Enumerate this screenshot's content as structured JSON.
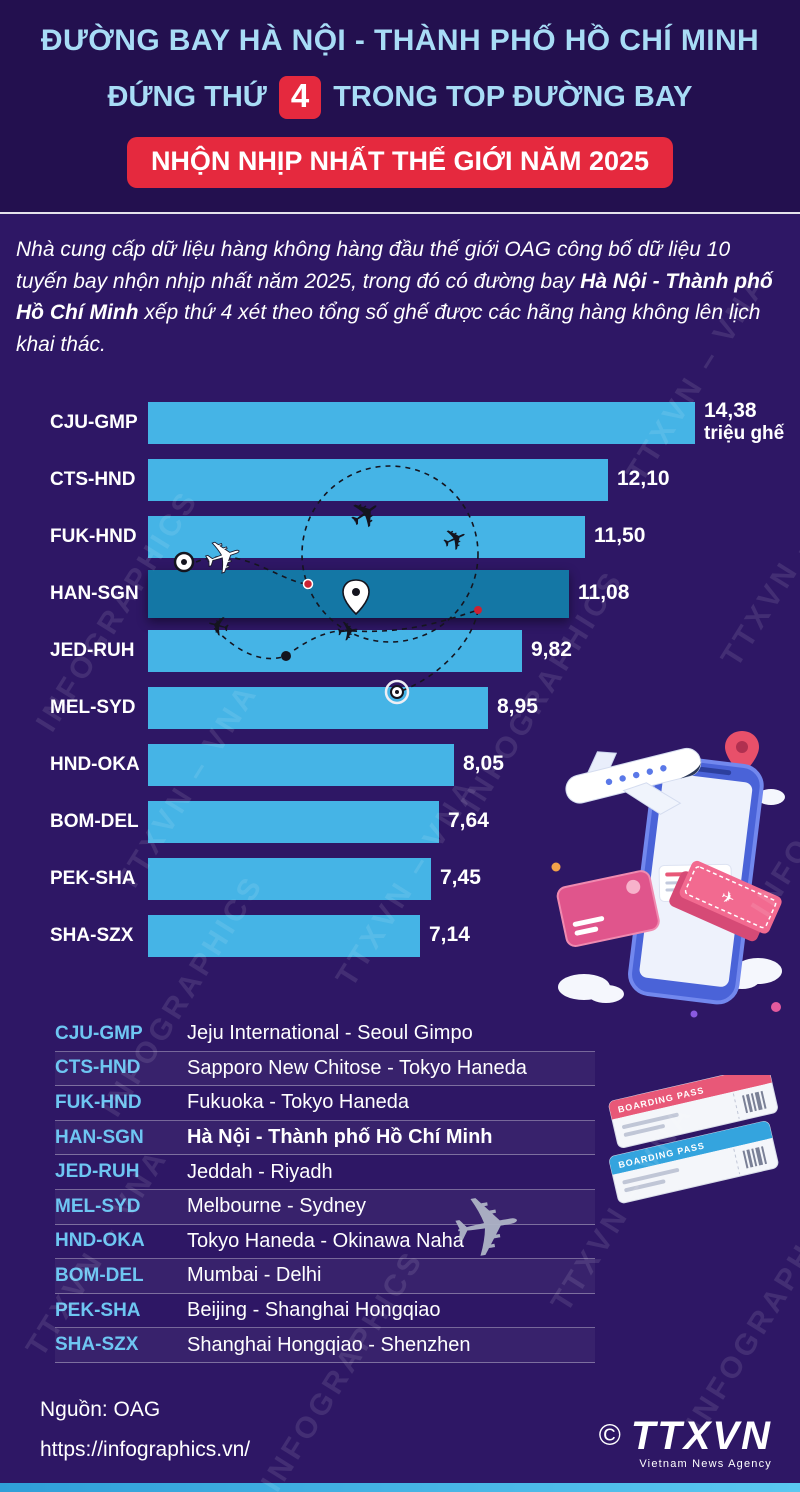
{
  "header": {
    "title_line1": "ĐƯỜNG BAY HÀ NỘI - THÀNH PHỐ HỒ CHÍ MINH",
    "title_line2_pre": "ĐỨNG THỨ",
    "title_line2_rank": "4",
    "title_line2_post": "TRONG TOP ĐƯỜNG BAY",
    "title_line3": "NHỘN NHỊP NHẤT THẾ GIỚI NĂM 2025"
  },
  "intro": {
    "text_part1": "Nhà cung cấp dữ liệu hàng không hàng đầu thế giới OAG công bố dữ liệu 10 tuyến bay nhộn nhịp nhất năm 2025, trong đó có đường bay ",
    "text_bold": "Hà Nội - Thành phố Hồ Chí Minh",
    "text_part2": " xếp thứ 4 xét theo tổng số ghế được các hãng hàng không lên lịch khai thác."
  },
  "chart_data": {
    "type": "bar",
    "orientation": "horizontal",
    "title": "Top 10 đường bay nhộn nhịp nhất thế giới năm 2025",
    "categories": [
      "CJU-GMP",
      "CTS-HND",
      "FUK-HND",
      "HAN-SGN",
      "JED-RUH",
      "MEL-SYD",
      "HND-OKA",
      "BOM-DEL",
      "PEK-SHA",
      "SHA-SZX"
    ],
    "values": [
      14.38,
      12.1,
      11.5,
      11.08,
      9.82,
      8.95,
      8.05,
      7.64,
      7.45,
      7.14
    ],
    "value_labels": [
      "14,38",
      "12,10",
      "11,50",
      "11,08",
      "9,82",
      "8,95",
      "8,05",
      "7,64",
      "7,45",
      "7,14"
    ],
    "unit_label": "triệu ghế",
    "highlighted_category": "HAN-SGN",
    "xlim": [
      0,
      14.38
    ],
    "bar_color": "#45b4e6",
    "highlight_color": "#1477a5"
  },
  "legend": {
    "rows": [
      {
        "code": "CJU-GMP",
        "name": "Jeju International - Seoul Gimpo",
        "bold": false
      },
      {
        "code": "CTS-HND",
        "name": "Sapporo New Chitose - Tokyo Haneda",
        "bold": false
      },
      {
        "code": "FUK-HND",
        "name": "Fukuoka - Tokyo Haneda",
        "bold": false
      },
      {
        "code": "HAN-SGN",
        "name": "Hà Nội - Thành phố Hồ Chí Minh",
        "bold": true
      },
      {
        "code": "JED-RUH",
        "name": "Jeddah - Riyadh",
        "bold": false
      },
      {
        "code": "MEL-SYD",
        "name": "Melbourne - Sydney",
        "bold": false
      },
      {
        "code": "HND-OKA",
        "name": "Tokyo Haneda - Okinawa Naha",
        "bold": false
      },
      {
        "code": "BOM-DEL",
        "name": "Mumbai - Delhi",
        "bold": false
      },
      {
        "code": "PEK-SHA",
        "name": "Beijing - Shanghai Hongqiao",
        "bold": false
      },
      {
        "code": "SHA-SZX",
        "name": "Shanghai Hongqiao - Shenzhen",
        "bold": false
      }
    ]
  },
  "decor": {
    "boarding_pass_label": "BOARDING PASS",
    "plane_icon": "✈"
  },
  "watermarks": {
    "text1": "TTXVN – VNA",
    "text2": "INFOGRAPHICS"
  },
  "footer": {
    "source": "Nguồn: OAG",
    "url": "https://infographics.vn/",
    "copyright": "©",
    "logo": "TTXVN",
    "logo_sub": "Vietnam News Agency"
  }
}
